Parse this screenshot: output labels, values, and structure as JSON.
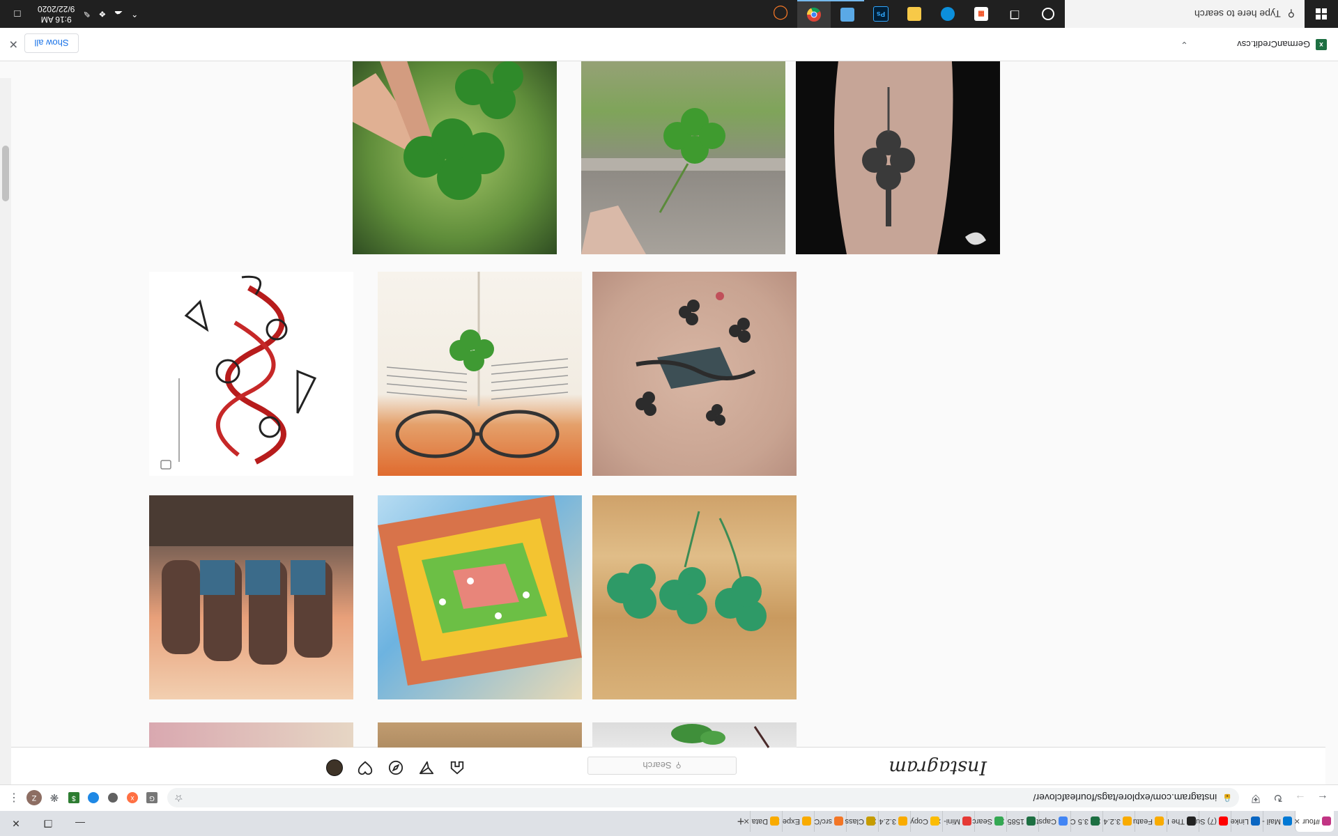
{
  "browser": {
    "tabs": [
      {
        "label": "#four",
        "color": "#c13584",
        "active": true
      },
      {
        "label": "Mail -",
        "color": "#0078d4"
      },
      {
        "label": "Linke",
        "color": "#0a66c2"
      },
      {
        "label": "(7) Su",
        "color": "#ff0000"
      },
      {
        "label": "The I",
        "color": "#222222"
      },
      {
        "label": "Featu",
        "color": "#f9ab00"
      },
      {
        "label": "3.2.4",
        "color": "#f9ab00"
      },
      {
        "label": "3.5 C",
        "color": "#1d6f42"
      },
      {
        "label": "Capst",
        "color": "#4285f4"
      },
      {
        "label": "1585",
        "color": "#1d6f42"
      },
      {
        "label": "Searc",
        "color": "#34a853"
      },
      {
        "label": "Mini-",
        "color": "#e53935"
      },
      {
        "label": "Copy",
        "color": "#fbbc04"
      },
      {
        "label": "3.2.4",
        "color": "#f9ab00"
      },
      {
        "label": "Class",
        "color": "#c69c00"
      },
      {
        "label": "src/C",
        "color": "#f37626"
      },
      {
        "label": "Expe",
        "color": "#f9ab00"
      },
      {
        "label": "Data",
        "color": "#f9ab00"
      }
    ],
    "url": "instagram.com/explore/tags/fourleafclover/",
    "profile_initial": "Z"
  },
  "instagram": {
    "logo": "Instagram",
    "search_placeholder": "Search",
    "nav_icons": [
      "home-icon",
      "direct-icon",
      "explore-icon",
      "activity-heart-icon",
      "profile-avatar"
    ]
  },
  "downloads": {
    "file_name": "GermanCredit.csv",
    "show_all": "Show all"
  },
  "taskbar": {
    "search_placeholder": "Type here to search",
    "time": "9:16 AM",
    "date": "9/22/2020",
    "pinned_apps": [
      "cortana-icon",
      "task-view-icon",
      "microsoft-store-icon",
      "edge-icon",
      "file-explorer-icon",
      "photoshop-icon",
      "weather-icon",
      "chrome-icon",
      "jupyter-icon"
    ],
    "photoshop_label": "Ps"
  }
}
